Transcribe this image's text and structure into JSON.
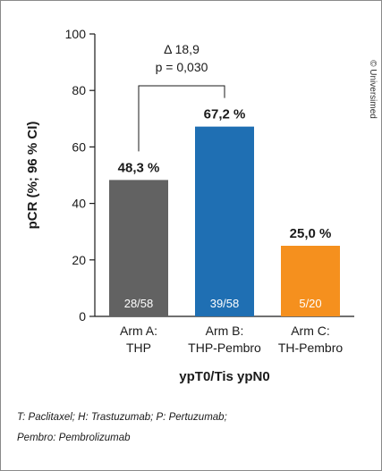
{
  "chart_data": {
    "type": "bar",
    "categories": [
      [
        "Arm A:",
        "THP"
      ],
      [
        "Arm B:",
        "THP-Pembro"
      ],
      [
        "Arm C:",
        "TH-Pembro"
      ]
    ],
    "values": [
      48.3,
      67.2,
      25.0
    ],
    "value_labels": [
      "48,3 %",
      "67,2 %",
      "25,0 %"
    ],
    "inbar_labels": [
      "28/58",
      "39/58",
      "5/20"
    ],
    "colors": [
      "#626262",
      "#1f6fb3",
      "#f5901e"
    ],
    "ylabel": "pCR (%; 96 % CI)",
    "xlabel": "ypT0/Tis ypN0",
    "ylim": [
      0,
      100
    ],
    "yticks": [
      0,
      20,
      40,
      60,
      80,
      100
    ],
    "grid": false,
    "annotation": {
      "between": [
        0,
        1
      ],
      "lines": [
        "Δ 18,9",
        "p = 0,030"
      ]
    }
  },
  "copyright": "© Universimed",
  "footnotes": [
    "T: Paclitaxel; H: Trastuzumab; P: Pertuzumab;",
    "Pembro: Pembrolizumab"
  ]
}
